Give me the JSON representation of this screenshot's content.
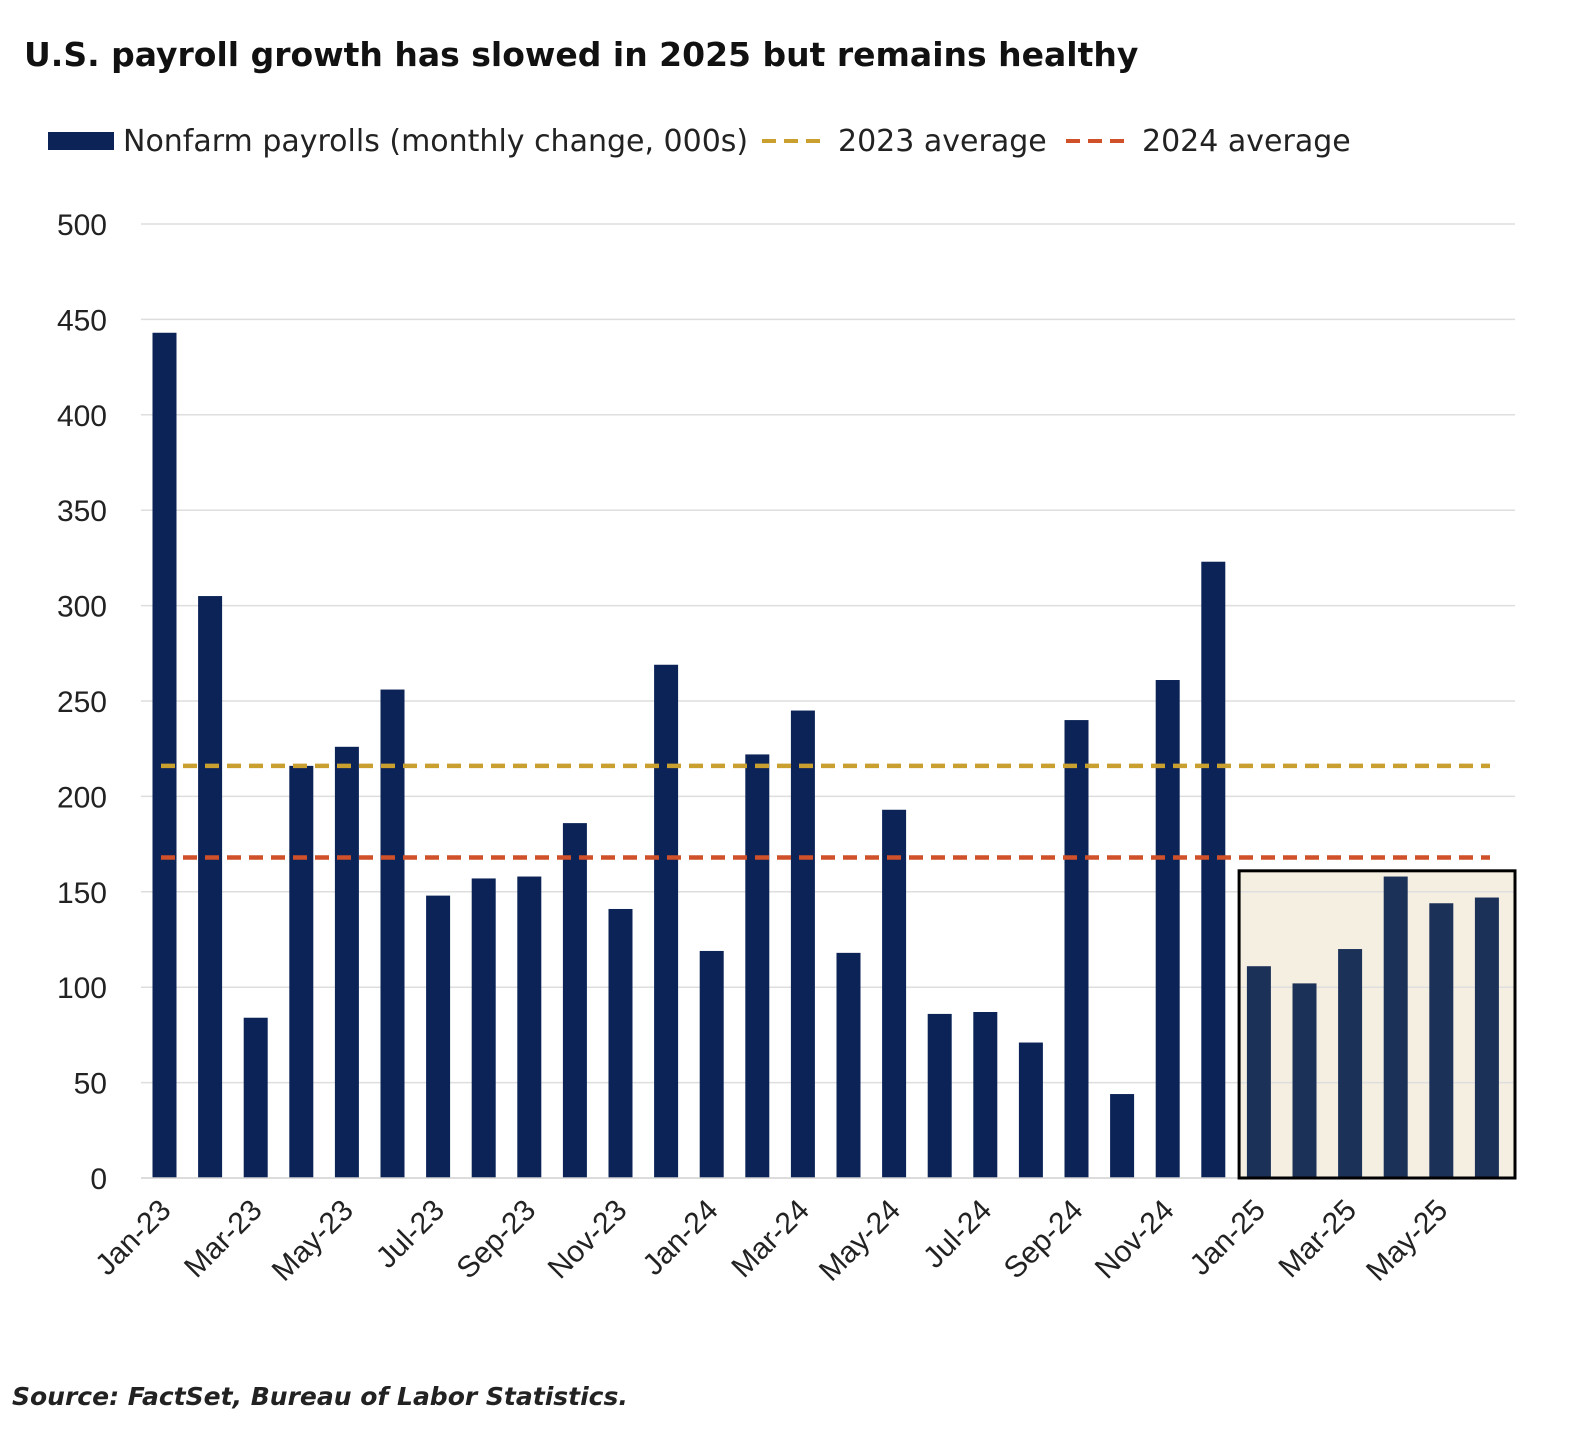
{
  "colors": {
    "bar": "#0b2357",
    "bar_highlight": "#1c3158",
    "avg_2023": "#c9a02f",
    "avg_2024": "#d0502a",
    "highlight_bg": "#f5efe2",
    "grid": "#dedede"
  },
  "source": "Source: FactSet, Bureau of Labor Statistics.",
  "chart_data": {
    "type": "bar",
    "title": "U.S. payroll growth has slowed in 2025 but remains healthy",
    "legend": {
      "placement": "top-left",
      "items": [
        {
          "key": "bars",
          "label": "Nonfarm payrolls (monthly change, 000s)"
        },
        {
          "key": "avg_2023",
          "label": "2023 average"
        },
        {
          "key": "avg_2024",
          "label": "2024 average"
        }
      ]
    },
    "categories": [
      "Jan-23",
      "Feb-23",
      "Mar-23",
      "Apr-23",
      "May-23",
      "Jun-23",
      "Jul-23",
      "Aug-23",
      "Sep-23",
      "Oct-23",
      "Nov-23",
      "Dec-23",
      "Jan-24",
      "Feb-24",
      "Mar-24",
      "Apr-24",
      "May-24",
      "Jun-24",
      "Jul-24",
      "Aug-24",
      "Sep-24",
      "Oct-24",
      "Nov-24",
      "Dec-24",
      "Jan-25",
      "Feb-25",
      "Mar-25",
      "Apr-25",
      "May-25",
      "Jun-25"
    ],
    "tick_labels": [
      "Jan-23",
      "Mar-23",
      "May-23",
      "Jul-23",
      "Sep-23",
      "Nov-23",
      "Jan-24",
      "Mar-24",
      "May-24",
      "Jul-24",
      "Sep-24",
      "Nov-24",
      "Jan-25",
      "Mar-25",
      "May-25"
    ],
    "series": [
      {
        "name": "Nonfarm payrolls (monthly change, 000s)",
        "values": [
          443,
          305,
          84,
          216,
          226,
          256,
          148,
          157,
          158,
          186,
          141,
          269,
          119,
          222,
          245,
          118,
          193,
          86,
          87,
          71,
          240,
          44,
          261,
          323,
          111,
          102,
          120,
          158,
          144,
          147
        ]
      }
    ],
    "reference_lines": [
      {
        "name": "2023 average",
        "value": 216
      },
      {
        "name": "2024 average",
        "value": 168
      }
    ],
    "highlight_range": [
      "Jan-25",
      "Jun-25"
    ],
    "ylim": [
      0,
      500
    ],
    "yticks": [
      0,
      50,
      100,
      150,
      200,
      250,
      300,
      350,
      400,
      450,
      500
    ],
    "grid": true,
    "xlabel": "",
    "ylabel": ""
  }
}
